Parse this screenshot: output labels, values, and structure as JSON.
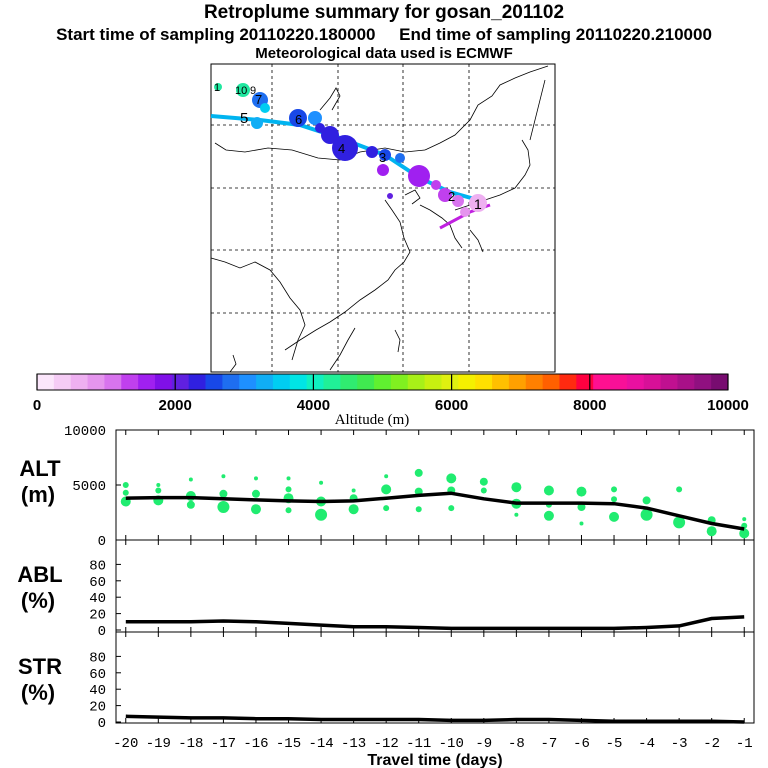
{
  "title": {
    "line1": "Retroplume summary for gosan_201102",
    "line2a": "Start time of sampling 20110220.180000",
    "line2b": "End time of sampling 20110220.210000",
    "line3": "Meteorological data used is ECMWF"
  },
  "colorbar": {
    "label": "Altitude (m)",
    "tick_labels": [
      "0",
      "2000",
      "4000",
      "6000",
      "8000",
      "10000"
    ],
    "colors": [
      "#fbe6fb",
      "#f5ccf5",
      "#eeb0f1",
      "#e595ee",
      "#d874ee",
      "#c040ee",
      "#a020f0",
      "#8010e8",
      "#6020e0",
      "#3020e0",
      "#1848e8",
      "#1e6ef0",
      "#1e90ff",
      "#10aef5",
      "#00cdf2",
      "#00e5e5",
      "#10f0c0",
      "#20f098",
      "#30ec70",
      "#40ea50",
      "#60f030",
      "#80f020",
      "#a8f018",
      "#c8f010",
      "#e0f010",
      "#f5f000",
      "#ffe000",
      "#ffc000",
      "#ffa000",
      "#ff8000",
      "#ff6000",
      "#ff2a10",
      "#ff0040",
      "#ff1090",
      "#f81098",
      "#ea10a0",
      "#d81098",
      "#c01090",
      "#a81088",
      "#901080",
      "#780c70"
    ]
  },
  "map": {
    "plume_labels": [
      "1",
      "10",
      "9",
      "7",
      "6",
      "5",
      "4",
      "3",
      "2",
      "1"
    ]
  },
  "chart_data": [
    {
      "type": "line",
      "panel": "ALT",
      "ylabel": "ALT\n(m)",
      "ylabel_line1": "ALT",
      "ylabel_line2": "(m)",
      "ylim": [
        0,
        10000
      ],
      "yticks": [
        "0",
        "5000",
        "10000"
      ],
      "x": [
        -20,
        -19,
        -18,
        -17,
        -16,
        -15,
        -14,
        -13,
        -12,
        -11,
        -10,
        -9,
        -8,
        -7,
        -6,
        -5,
        -4,
        -3,
        -2,
        -1
      ],
      "mean": [
        3800,
        3850,
        3850,
        3750,
        3650,
        3550,
        3500,
        3550,
        3800,
        4050,
        4250,
        3750,
        3350,
        3350,
        3350,
        3300,
        2900,
        2200,
        1500,
        1000
      ],
      "scatter_points": [
        [
          -20,
          3500,
          5
        ],
        [
          -20,
          4300,
          3
        ],
        [
          -20,
          5000,
          3
        ],
        [
          -19,
          3600,
          5
        ],
        [
          -19,
          4500,
          3
        ],
        [
          -19,
          5000,
          2
        ],
        [
          -18,
          3200,
          4
        ],
        [
          -18,
          4000,
          5
        ],
        [
          -18,
          5500,
          2
        ],
        [
          -17,
          3000,
          6
        ],
        [
          -17,
          4200,
          4
        ],
        [
          -17,
          5800,
          2
        ],
        [
          -16,
          2800,
          5
        ],
        [
          -16,
          4200,
          4
        ],
        [
          -16,
          5600,
          2
        ],
        [
          -15,
          2700,
          3
        ],
        [
          -15,
          3800,
          5
        ],
        [
          -15,
          4600,
          3
        ],
        [
          -15,
          5600,
          2
        ],
        [
          -14,
          2300,
          6
        ],
        [
          -14,
          3500,
          5
        ],
        [
          -14,
          5200,
          2
        ],
        [
          -13,
          2800,
          5
        ],
        [
          -13,
          3800,
          4
        ],
        [
          -13,
          4500,
          2
        ],
        [
          -12,
          2900,
          3
        ],
        [
          -12,
          4600,
          5
        ],
        [
          -12,
          5800,
          2
        ],
        [
          -11,
          2800,
          3
        ],
        [
          -11,
          4400,
          4
        ],
        [
          -11,
          6100,
          4
        ],
        [
          -10,
          2900,
          3
        ],
        [
          -10,
          4500,
          4
        ],
        [
          -10,
          5600,
          5
        ],
        [
          -9,
          4500,
          3
        ],
        [
          -9,
          5300,
          4
        ],
        [
          -8,
          2300,
          2
        ],
        [
          -8,
          3300,
          5
        ],
        [
          -8,
          4800,
          5
        ],
        [
          -7,
          2200,
          5
        ],
        [
          -7,
          3200,
          3
        ],
        [
          -7,
          4500,
          5
        ],
        [
          -6,
          1500,
          2
        ],
        [
          -6,
          3000,
          4
        ],
        [
          -6,
          4400,
          5
        ],
        [
          -5,
          2100,
          5
        ],
        [
          -5,
          3700,
          3
        ],
        [
          -5,
          4600,
          3
        ],
        [
          -4,
          2300,
          6
        ],
        [
          -4,
          3600,
          4
        ],
        [
          -3,
          1600,
          6
        ],
        [
          -3,
          4600,
          3
        ],
        [
          -2,
          800,
          5
        ],
        [
          -2,
          1800,
          4
        ],
        [
          -1,
          600,
          5
        ],
        [
          -1,
          1300,
          3
        ],
        [
          -1,
          1900,
          2
        ]
      ]
    },
    {
      "type": "line",
      "panel": "ABL",
      "ylabel_line1": "ABL",
      "ylabel_line2": "(%)",
      "ylim": [
        0,
        100
      ],
      "yticks": [
        "0",
        "20",
        "40",
        "60",
        "80"
      ],
      "x": [
        -20,
        -19,
        -18,
        -17,
        -16,
        -15,
        -14,
        -13,
        -12,
        -11,
        -10,
        -9,
        -8,
        -7,
        -6,
        -5,
        -4,
        -3,
        -2,
        -1
      ],
      "values": [
        10,
        10,
        10,
        11,
        10,
        8,
        6,
        4,
        4,
        3,
        2,
        2,
        2,
        2,
        2,
        2,
        3,
        5,
        14,
        16
      ]
    },
    {
      "type": "line",
      "panel": "STR",
      "ylabel_line1": "STR",
      "ylabel_line2": "(%)",
      "ylim": [
        0,
        100
      ],
      "yticks": [
        "0",
        "20",
        "40",
        "60",
        "80"
      ],
      "x": [
        -20,
        -19,
        -18,
        -17,
        -16,
        -15,
        -14,
        -13,
        -12,
        -11,
        -10,
        -9,
        -8,
        -7,
        -6,
        -5,
        -4,
        -3,
        -2,
        -1
      ],
      "values": [
        7,
        6,
        5,
        5,
        4,
        4,
        3,
        3,
        3,
        3,
        2,
        2,
        3,
        3,
        2,
        1,
        1,
        1,
        1,
        0
      ],
      "xlabel": "Travel time (days)",
      "xtick_labels": [
        "-20",
        "-19",
        "-18",
        "-17",
        "-16",
        "-15",
        "-14",
        "-13",
        "-12",
        "-11",
        "-10",
        "-9",
        "-8",
        "-7",
        "-6",
        "-5",
        "-4",
        "-3",
        "-2",
        "-1"
      ]
    }
  ]
}
